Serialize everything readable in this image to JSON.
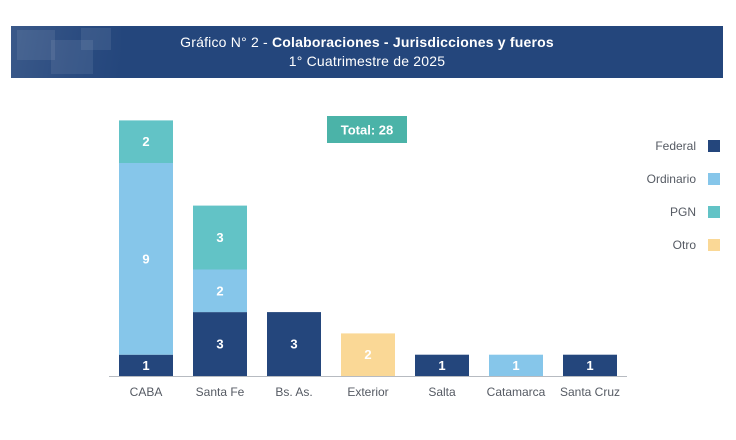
{
  "header": {
    "title_prefix": "Gráfico N° 2 - ",
    "title_bold": "Colaboraciones - Jurisdicciones y fueros",
    "subtitle": "1° Cuatrimestre de 2025"
  },
  "colors": {
    "banner": "#24467c",
    "federal": "#24467c",
    "ordinario": "#86c6ea",
    "pgn": "#62c3c6",
    "otro": "#fad896",
    "total_badge": "#4bb3a8"
  },
  "chart_data": {
    "type": "bar",
    "stacked": true,
    "title": "Colaboraciones - Jurisdicciones y fueros",
    "subtitle": "1° Cuatrimestre de 2025",
    "total_label": "Total: 28",
    "categories": [
      "CABA",
      "Santa Fe",
      "Bs. As.",
      "Exterior",
      "Salta",
      "Catamarca",
      "Santa Cruz"
    ],
    "series": [
      {
        "name": "Federal",
        "key": "federal",
        "values": [
          1,
          3,
          3,
          0,
          1,
          0,
          1
        ]
      },
      {
        "name": "Ordinario",
        "key": "ordinario",
        "values": [
          9,
          2,
          0,
          0,
          0,
          1,
          0
        ]
      },
      {
        "name": "PGN",
        "key": "pgn",
        "values": [
          2,
          3,
          0,
          0,
          0,
          0,
          0
        ]
      },
      {
        "name": "Otro",
        "key": "otro",
        "values": [
          0,
          0,
          0,
          2,
          0,
          0,
          0
        ]
      }
    ],
    "ylim": [
      0,
      12
    ],
    "legend_position": "right"
  }
}
